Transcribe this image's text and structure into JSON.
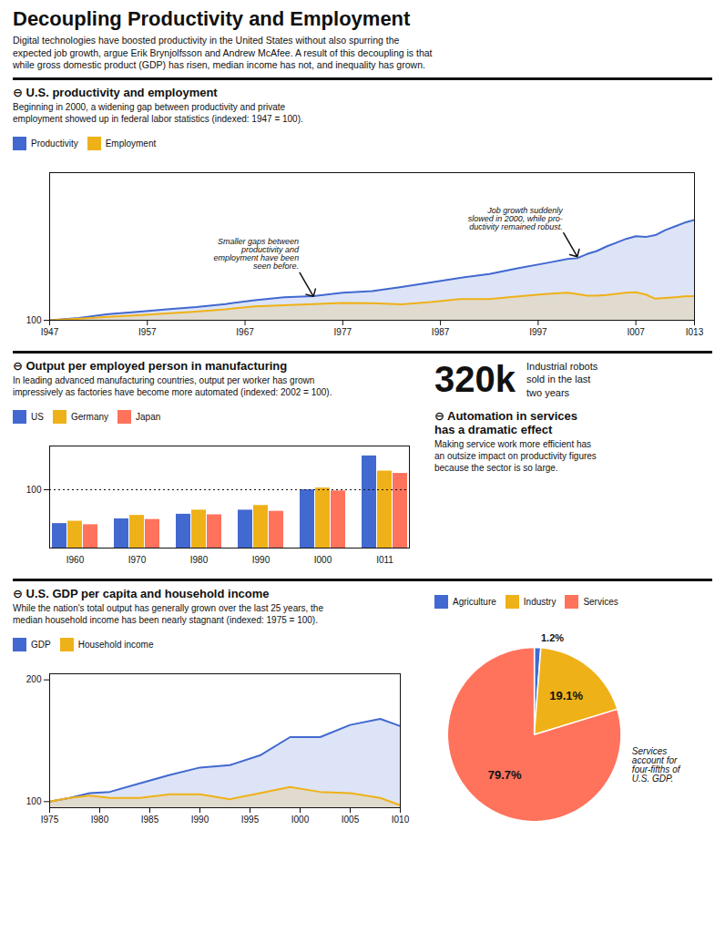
{
  "title": "Decoupling Productivity and Employment",
  "subtitle": "Digital technologies have boosted productivity in the United States without also spurring the\nexpected job growth, argue Erik Brynjolfsson and Andrew McAfee. A result of this decoupling is that\nwhile gross domestic product (GDP) has risen, median income has not, and inequality has grown.",
  "annotations": [
    "320k",
    "Industrial robots\nsold in the last\ntwo years"
  ],
  "chart_data": [
    {
      "type": "area",
      "title": "⊖ U.S. productivity and employment",
      "subtitle": "Beginning in 2000, a widening gap between productivity and private\nemployment showed up in federal labor statistics (indexed: 1947 = 100).",
      "x": [
        1947,
        1950,
        1953,
        1956,
        1959,
        1962,
        1965,
        1968,
        1971,
        1974,
        1977,
        1980,
        1983,
        1986,
        1989,
        1992,
        1995,
        1998,
        2000,
        2001,
        2002,
        2003,
        2004,
        2005,
        2006,
        2007,
        2008,
        2009,
        2010,
        2011,
        2012,
        2013
      ],
      "series": [
        {
          "name": "Productivity",
          "values": [
            100,
            106,
            116,
            122,
            129,
            135,
            143,
            153,
            161,
            164,
            173,
            177,
            188,
            200,
            212,
            222,
            238,
            252,
            262,
            264,
            275,
            283,
            295,
            305,
            315,
            322,
            320,
            325,
            338,
            348,
            358,
            365
          ]
        },
        {
          "name": "Employment",
          "values": [
            100,
            104,
            109,
            113,
            118,
            123,
            129,
            137,
            140,
            143,
            146,
            145,
            142,
            148,
            156,
            156,
            163,
            170,
            173,
            169,
            165,
            165,
            167,
            170,
            173,
            174,
            168,
            157,
            159,
            161,
            163,
            164
          ]
        }
      ],
      "xlim": [
        1947,
        2013
      ],
      "xticks": [
        {
          "value": 1947,
          "label": "I947"
        },
        {
          "value": 1957,
          "label": "I957"
        },
        {
          "value": 1967,
          "label": "I967"
        },
        {
          "value": 1977,
          "label": "I977"
        },
        {
          "value": 1987,
          "label": "I987"
        },
        {
          "value": 1997,
          "label": "I997"
        },
        {
          "value": 2007,
          "label": "I007"
        },
        {
          "value": 2013,
          "label": "I013"
        }
      ],
      "ylim": [
        100,
        490
      ],
      "yticks": [
        100
      ],
      "legend": "top",
      "annotations": [
        {
          "text": "Smaller gaps between\nproductivity and\nemployment have been\nseen before.",
          "x": 1974,
          "y": 163
        },
        {
          "text": "Job growth suddenly\nslowed in 2000, while pro-\nductivity remained robust.",
          "x": 2001,
          "y": 268
        }
      ]
    },
    {
      "type": "bar",
      "title": "⊖ Output per employed person in manufacturing",
      "subtitle": "In leading advanced manufacturing countries, output per worker has grown\nimpressively as factories have become more automated (indexed: 2002 = 100).",
      "categories": [
        "I960",
        "I970",
        "I980",
        "I990",
        "I000",
        "I011"
      ],
      "series": [
        {
          "name": "US",
          "values": [
            42,
            50,
            58,
            65,
            100,
            158
          ]
        },
        {
          "name": "Germany",
          "values": [
            46,
            56,
            65,
            73,
            103,
            132
          ]
        },
        {
          "name": "Japan",
          "values": [
            40,
            49,
            57,
            63,
            98,
            128
          ]
        }
      ],
      "ylim": [
        0,
        175
      ],
      "yticks": [
        100
      ],
      "grid": true,
      "legend": "top"
    },
    {
      "type": "area",
      "title": "⊖ U.S. GDP per capita and household income",
      "subtitle": "While the nation's total output has generally grown over the last 25 years, the\nmedian household income has been nearly stagnant (indexed: 1975 = 100).",
      "x": [
        1975,
        1977,
        1979,
        1981,
        1984,
        1987,
        1990,
        1993,
        1996,
        1999,
        2002,
        2005,
        2008,
        2010
      ],
      "series": [
        {
          "name": "GDP",
          "values": [
            100,
            103,
            107,
            108,
            115,
            122,
            128,
            130,
            138,
            153,
            153,
            163,
            168,
            162
          ]
        },
        {
          "name": "Household income",
          "values": [
            100,
            103,
            105,
            103,
            103,
            106,
            106,
            102,
            107,
            112,
            108,
            107,
            103,
            97
          ]
        }
      ],
      "xlim": [
        1975,
        2010
      ],
      "xticks": [
        {
          "value": 1975,
          "label": "I975"
        },
        {
          "value": 1980,
          "label": "I980"
        },
        {
          "value": 1985,
          "label": "I985"
        },
        {
          "value": 1990,
          "label": "I990"
        },
        {
          "value": 1995,
          "label": "I995"
        },
        {
          "value": 2000,
          "label": "I000"
        },
        {
          "value": 2005,
          "label": "I005"
        },
        {
          "value": 2010,
          "label": "I010"
        }
      ],
      "ylim": [
        95,
        205
      ],
      "yticks": [
        100,
        200
      ],
      "legend": "top"
    },
    {
      "type": "pie",
      "title": "⊖ Automation in services\nhas a dramatic effect",
      "subtitle": "Making service work more efficient has\nan outsize impact on productivity figures\nbecause the sector is so large.",
      "categories": [
        "Agriculture",
        "Industry",
        "Services"
      ],
      "values": [
        1.2,
        19.1,
        79.7
      ],
      "value_labels": [
        "1.2%",
        "19.1%",
        "79.7%"
      ],
      "data_labels": true,
      "legend": "top",
      "annotations": [
        "Services\naccount for\nfour-fifths of\nU.S. GDP."
      ]
    }
  ]
}
